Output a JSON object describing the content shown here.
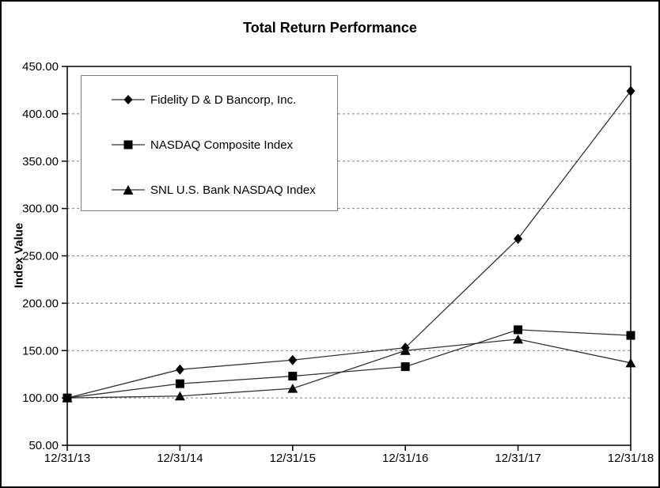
{
  "chart_data": {
    "type": "line",
    "title": "Total Return Performance",
    "xlabel": "",
    "ylabel": "Index Value",
    "categories": [
      "12/31/13",
      "12/31/14",
      "12/31/15",
      "12/31/16",
      "12/31/17",
      "12/31/18"
    ],
    "series": [
      {
        "name": "Fidelity D & D Bancorp, Inc.",
        "marker": "diamond",
        "values": [
          100.0,
          130.0,
          140.0,
          153.0,
          268.0,
          424.0
        ]
      },
      {
        "name": "NASDAQ Composite Index",
        "marker": "square",
        "values": [
          100.0,
          115.0,
          123.0,
          133.0,
          172.0,
          166.0
        ]
      },
      {
        "name": "SNL U.S. Bank NASDAQ Index",
        "marker": "triangle",
        "values": [
          100.0,
          102.0,
          110.0,
          150.0,
          162.0,
          137.0
        ]
      }
    ],
    "ylim": [
      50,
      450
    ],
    "ytick_step": 50,
    "ytick_format": "2dp",
    "grid": "horizontal-dashed",
    "legend_position": "inside-top-left",
    "colors": {
      "series": "#000000",
      "line": "#333333",
      "gridline": "#808080",
      "axis": "#000000",
      "legend_border": "#808080",
      "background": "#ffffff",
      "text": "#000000"
    }
  }
}
